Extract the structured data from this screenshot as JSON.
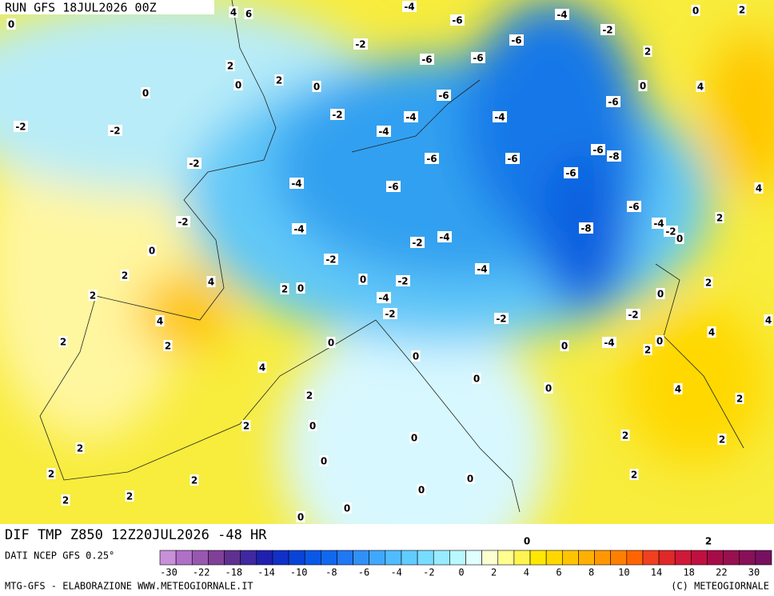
{
  "header": {
    "run": "RUN GFS 18JUL2026 00Z",
    "field": "DIF TMP Z850 12Z20JUL2026 -48 HR"
  },
  "map_labels": [
    "4",
    "6",
    "-4",
    "-6",
    "-4",
    "0",
    "2",
    "0",
    "-2",
    "-2",
    "-6",
    "-6",
    "-6",
    "2",
    "2",
    "2",
    "0",
    "0",
    "0",
    "0",
    "4",
    "-6",
    "-6",
    "-2",
    "-4",
    "-4",
    "-2",
    "-2",
    "-4",
    "-6",
    "-8",
    "-2",
    "-6",
    "-6",
    "-6",
    "-4",
    "-6",
    "4",
    "-6",
    "2",
    "-2",
    "-4",
    "-8",
    "-4",
    "-2",
    "0",
    "-2",
    "-4",
    "0",
    "-2",
    "-4",
    "2",
    "4",
    "2",
    "0",
    "0",
    "-2",
    "2",
    "-4",
    "0",
    "2",
    "-2",
    "-2",
    "-2",
    "4",
    "4",
    "4",
    "2",
    "2",
    "0",
    "0",
    "0",
    "-4",
    "2",
    "0",
    "4",
    "0",
    "0",
    "4",
    "2",
    "2",
    "2",
    "0",
    "0",
    "2",
    "2",
    "2",
    "0",
    "2",
    "2",
    "0",
    "2",
    "0",
    "2",
    "2",
    "0",
    "0",
    "0",
    "2"
  ],
  "legend": {
    "source": "DATI NCEP GFS 0.25°",
    "colors": [
      "#c890d8",
      "#b070c8",
      "#9858b0",
      "#804098",
      "#603090",
      "#4028a0",
      "#2020b0",
      "#1030c8",
      "#0844d8",
      "#0a58e8",
      "#1068f0",
      "#2078f4",
      "#3090f8",
      "#40a8fc",
      "#50bcff",
      "#60ccff",
      "#78dcff",
      "#98ecff",
      "#b8f8ff",
      "#e0ffff",
      "#fcffd0",
      "#ffff90",
      "#fff450",
      "#ffe800",
      "#ffd800",
      "#ffc400",
      "#ffb000",
      "#ff9800",
      "#ff8000",
      "#ff6400",
      "#f04020",
      "#e02828",
      "#d01838",
      "#c01040",
      "#a80c48",
      "#981050",
      "#881058",
      "#781060"
    ],
    "ticks": [
      "-30",
      "-22",
      "-18",
      "-14",
      "-10",
      "-8",
      "-6",
      "-4",
      "-2",
      "0",
      "2",
      "4",
      "6",
      "8",
      "10",
      "14",
      "18",
      "22",
      "30"
    ]
  },
  "footer": {
    "credit": "MTG-GFS - ELABORAZIONE WWW.METEOGIORNALE.IT",
    "copyright": "(C) METEOGIORNALE"
  }
}
